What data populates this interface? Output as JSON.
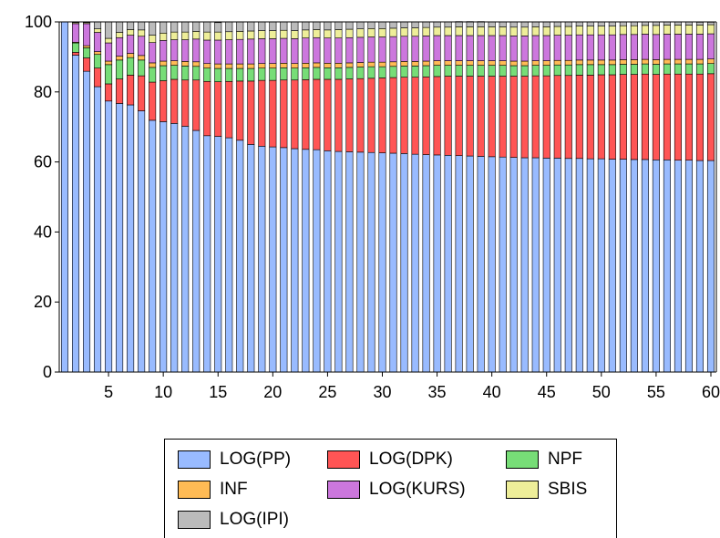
{
  "chart_data": {
    "type": "bar",
    "stacked": true,
    "title": "",
    "xlabel": "",
    "ylabel": "",
    "ylim": [
      0,
      100
    ],
    "yticks": [
      0,
      20,
      40,
      60,
      80,
      100
    ],
    "xticks": [
      5,
      10,
      15,
      20,
      25,
      30,
      35,
      40,
      45,
      50,
      55,
      60
    ],
    "x": [
      1,
      2,
      3,
      4,
      5,
      6,
      7,
      8,
      9,
      10,
      11,
      12,
      13,
      14,
      15,
      16,
      17,
      18,
      19,
      20,
      21,
      22,
      23,
      24,
      25,
      26,
      27,
      28,
      29,
      30,
      31,
      32,
      33,
      34,
      35,
      36,
      37,
      38,
      39,
      40,
      41,
      42,
      43,
      44,
      45,
      46,
      47,
      48,
      49,
      50,
      51,
      52,
      53,
      54,
      55,
      56,
      57,
      58,
      59,
      60
    ],
    "legend_position": "bottom",
    "series": [
      {
        "name": "LOG(PP)",
        "color": "#99BBFF",
        "values": [
          100,
          90.5,
          85.9,
          81.5,
          77.4,
          76.7,
          76.3,
          74.6,
          71.9,
          71.5,
          71,
          70.2,
          69,
          67.5,
          67.3,
          66.9,
          66.2,
          65,
          64.5,
          64.3,
          64.1,
          63.8,
          63.6,
          63.5,
          63.2,
          63,
          62.9,
          62.8,
          62.7,
          62.6,
          62.5,
          62.4,
          62.2,
          62.1,
          62,
          61.9,
          61.8,
          61.7,
          61.6,
          61.5,
          61.4,
          61.3,
          61.2,
          61.2,
          61.1,
          61.1,
          61,
          61,
          60.9,
          60.9,
          60.8,
          60.8,
          60.7,
          60.7,
          60.6,
          60.6,
          60.5,
          60.5,
          60.4,
          60.4
        ]
      },
      {
        "name": "LOG(DPK)",
        "color": "#FF5555",
        "values": [
          0,
          0.8,
          3.8,
          5.3,
          4.9,
          7,
          8.5,
          10,
          10.9,
          11.7,
          12.6,
          13.2,
          14.4,
          15.5,
          15.6,
          16.1,
          16.9,
          18.1,
          18.8,
          19,
          19.3,
          19.6,
          19.9,
          20.1,
          20.4,
          20.6,
          20.8,
          21,
          21.2,
          21.4,
          21.6,
          21.8,
          22,
          22.2,
          22.4,
          22.6,
          22.7,
          22.8,
          22.9,
          23,
          23.1,
          23.2,
          23.3,
          23.4,
          23.5,
          23.6,
          23.7,
          23.8,
          23.9,
          24,
          24.1,
          24.2,
          24.3,
          24.4,
          24.4,
          24.5,
          24.6,
          24.6,
          24.7,
          24.8
        ]
      },
      {
        "name": "NPF",
        "color": "#77DD77",
        "values": [
          0,
          2.7,
          2.9,
          3.9,
          5.5,
          5.4,
          5,
          4.5,
          4.2,
          4.3,
          4,
          4,
          3.9,
          3.8,
          3.8,
          3.7,
          3.6,
          3.6,
          3.5,
          3.5,
          3.5,
          3.4,
          3.4,
          3.4,
          3.3,
          3.3,
          3.3,
          3.3,
          3.3,
          3.2,
          3.2,
          3.2,
          3.2,
          3.2,
          3.2,
          3.1,
          3.1,
          3.1,
          3.1,
          3.1,
          3.1,
          3,
          3,
          3,
          3,
          3,
          3,
          3,
          3,
          2.9,
          2.9,
          2.9,
          2.9,
          2.9,
          2.9,
          2.9,
          2.9,
          2.9,
          2.9,
          2.9
        ]
      },
      {
        "name": "INF",
        "color": "#FFBB55",
        "values": [
          0,
          0.2,
          0.6,
          0.8,
          1,
          1.1,
          1.2,
          1.3,
          1.3,
          1.3,
          1.3,
          1.3,
          1.3,
          1.3,
          1.3,
          1.3,
          1.3,
          1.3,
          1.3,
          1.3,
          1.3,
          1.3,
          1.3,
          1.3,
          1.3,
          1.3,
          1.3,
          1.3,
          1.3,
          1.3,
          1.3,
          1.3,
          1.3,
          1.3,
          1.3,
          1.3,
          1.3,
          1.3,
          1.3,
          1.3,
          1.3,
          1.3,
          1.3,
          1.3,
          1.3,
          1.3,
          1.3,
          1.3,
          1.3,
          1.3,
          1.3,
          1.3,
          1.3,
          1.3,
          1.3,
          1.3,
          1.3,
          1.3,
          1.3,
          1.3
        ]
      },
      {
        "name": "LOG(KURS)",
        "color": "#CC77DD",
        "values": [
          0,
          5.3,
          6.3,
          5.5,
          5.2,
          5.3,
          5.2,
          5.5,
          5.8,
          5.9,
          6,
          6.2,
          6.5,
          6.7,
          6.8,
          6.9,
          7,
          7.1,
          7.1,
          7.1,
          7.1,
          7.1,
          7.2,
          7.2,
          7.2,
          7.2,
          7.2,
          7.2,
          7.2,
          7.2,
          7.2,
          7.2,
          7.2,
          7.2,
          7.2,
          7.2,
          7.2,
          7.2,
          7.2,
          7.2,
          7.2,
          7.2,
          7.2,
          7.2,
          7.2,
          7.2,
          7.2,
          7.2,
          7.2,
          7.2,
          7.2,
          7.2,
          7.2,
          7.2,
          7.2,
          7.2,
          7.2,
          7.2,
          7.2,
          7.2
        ]
      },
      {
        "name": "SBIS",
        "color": "#EEEE99",
        "values": [
          0,
          0.3,
          0.3,
          1,
          1.3,
          1.5,
          1.6,
          1.8,
          2.1,
          2.1,
          2.2,
          2.2,
          2.2,
          2.3,
          2.3,
          2.3,
          2.3,
          2.3,
          2.3,
          2.3,
          2.3,
          2.3,
          2.3,
          2.3,
          2.3,
          2.4,
          2.4,
          2.4,
          2.4,
          2.4,
          2.4,
          2.4,
          2.4,
          2.4,
          2.4,
          2.4,
          2.5,
          2.5,
          2.5,
          2.5,
          2.5,
          2.5,
          2.5,
          2.5,
          2.5,
          2.5,
          2.5,
          2.5,
          2.5,
          2.5,
          2.5,
          2.5,
          2.5,
          2.5,
          2.6,
          2.6,
          2.6,
          2.6,
          2.6,
          2.6
        ]
      },
      {
        "name": "LOG(IPI)",
        "color": "#BBBBBB",
        "values": [
          0,
          0.2,
          0.2,
          2,
          4.7,
          3,
          2.2,
          2.3,
          3.8,
          3.2,
          2.9,
          2.9,
          2.7,
          2.9,
          2.7,
          2.8,
          2.7,
          2.6,
          2.5,
          2.5,
          2.4,
          2.5,
          2.3,
          2.2,
          2.3,
          2.2,
          2.1,
          2,
          1.9,
          1.9,
          1.8,
          1.7,
          1.7,
          1.6,
          1.5,
          1.5,
          1.5,
          1.5,
          1.5,
          1.4,
          1.4,
          1.5,
          1.5,
          1.4,
          1.4,
          1.3,
          1.3,
          1.2,
          1.2,
          1.2,
          1.2,
          1.1,
          1.1,
          1,
          1,
          0.9,
          0.9,
          0.9,
          0.8,
          0.7
        ]
      }
    ]
  }
}
